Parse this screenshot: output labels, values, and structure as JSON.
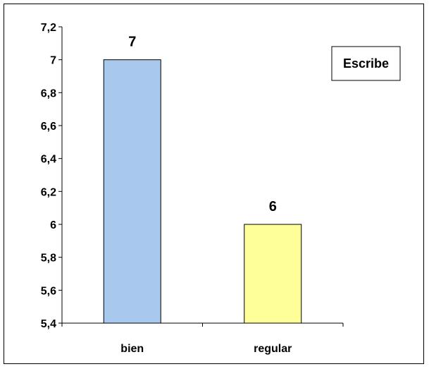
{
  "chart_data": {
    "type": "bar",
    "categories": [
      "bien",
      "regular"
    ],
    "values": [
      7,
      6
    ],
    "data_labels": [
      "7",
      "6"
    ],
    "yticks": [
      "5,4",
      "5,6",
      "5,8",
      "6",
      "6,2",
      "6,4",
      "6,6",
      "6,8",
      "7",
      "7,2"
    ],
    "ylim": [
      5.4,
      7.2
    ],
    "title": "",
    "xlabel": "",
    "ylabel": "",
    "grid": false,
    "legend": {
      "label": "Escribe",
      "placement": "top-right"
    },
    "colors": {
      "bar_fills": [
        "#a9c8ee",
        "#ffff99"
      ],
      "bar_stroke": "#000000",
      "axis": "#000000"
    }
  }
}
